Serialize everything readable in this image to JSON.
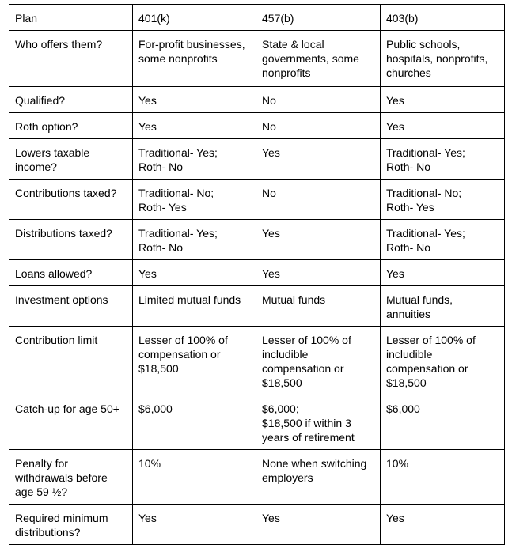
{
  "table": {
    "rows": [
      [
        "Plan",
        "401(k)",
        "457(b)",
        "403(b)"
      ],
      [
        "Who offers them?",
        "For-profit businesses,\nsome nonprofits",
        "State & local\ngovernments, some\nnonprofits",
        "Public schools,\nhospitals, nonprofits,\nchurches"
      ],
      [
        "Qualified?",
        "Yes",
        "No",
        "Yes"
      ],
      [
        "Roth option?",
        "Yes",
        "No",
        "Yes"
      ],
      [
        "Lowers taxable\nincome?",
        "Traditional- Yes;\nRoth- No",
        "Yes",
        "Traditional- Yes;\nRoth- No"
      ],
      [
        "Contributions taxed?",
        "Traditional- No;\nRoth- Yes",
        "No",
        "Traditional- No;\nRoth- Yes"
      ],
      [
        "Distributions taxed?",
        "Traditional- Yes;\nRoth- No",
        "Yes",
        "Traditional- Yes;\nRoth- No"
      ],
      [
        "Loans allowed?",
        "Yes",
        "Yes",
        "Yes"
      ],
      [
        "Investment options",
        "Limited mutual funds",
        "Mutual funds",
        "Mutual funds,\nannuities"
      ],
      [
        "Contribution limit",
        "Lesser of 100% of\ncompensation or\n$18,500",
        "Lesser of 100% of\nincludible\ncompensation or\n$18,500",
        "Lesser of 100% of\nincludible\ncompensation or\n$18,500"
      ],
      [
        "Catch-up for age 50+",
        "$6,000",
        "$6,000;\n  $18,500 if within 3\n  years of retirement",
        "$6,000"
      ],
      [
        "Penalty for\nwithdrawals before\nage 59 ½?",
        "10%",
        "None when switching\nemployers",
        "10%"
      ],
      [
        "Required minimum\ndistributions?",
        "Yes",
        "Yes",
        "Yes"
      ]
    ]
  }
}
